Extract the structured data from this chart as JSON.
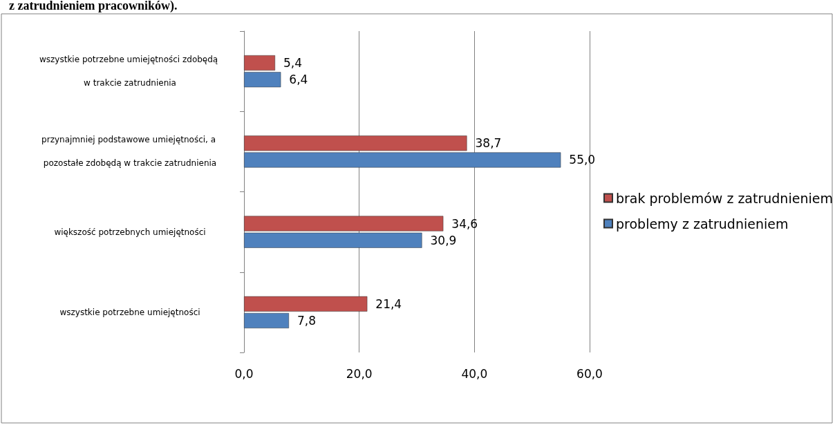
{
  "chart_data": {
    "type": "bar",
    "orientation": "horizontal",
    "title": "z zatrudnieniem pracowników).",
    "categories": [
      "wszystkie potrzebne umiejętności zdobędą w trakcie zatrudnienia",
      "przynajmniej podstawowe umiejętności, a pozostałe zdobędą w trakcie zatrudnienia",
      "większość potrzebnych umiejętności",
      "wszystkie potrzebne umiejętności"
    ],
    "series": [
      {
        "name": "brak problemów z zatrudnieniem",
        "color": "#c0504d",
        "values": [
          5.4,
          38.7,
          34.6,
          21.4
        ],
        "value_labels": [
          "5,4",
          "38,7",
          "34,6",
          "21,4"
        ]
      },
      {
        "name": "problemy z zatrudnieniem",
        "color": "#4f81bd",
        "values": [
          6.4,
          55.0,
          30.9,
          7.8
        ],
        "value_labels": [
          "6,4",
          "55,0",
          "30,9",
          "7,8"
        ]
      }
    ],
    "xlim": [
      0,
      60
    ],
    "xticks": [
      {
        "value": 0,
        "label": "0,0"
      },
      {
        "value": 20,
        "label": "20,0"
      },
      {
        "value": 40,
        "label": "40,0"
      },
      {
        "value": 60,
        "label": "60,0"
      }
    ],
    "grid": "x",
    "legend": "right"
  }
}
